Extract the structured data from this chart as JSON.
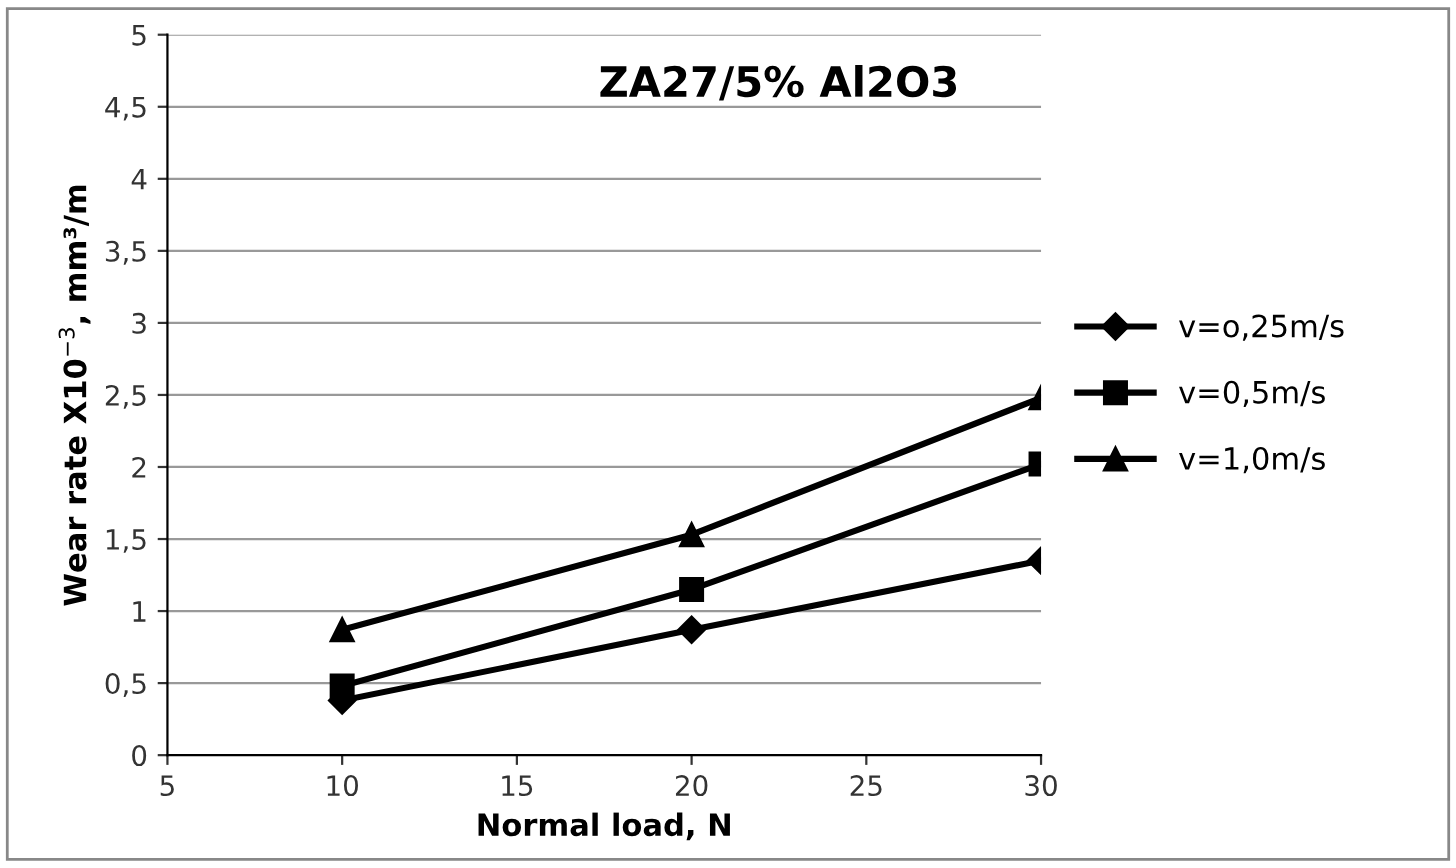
{
  "chart_data": {
    "type": "line",
    "title": "ZA27/5% Al2O3",
    "xlabel": "Normal load, N",
    "ylabel": "Wear rate X10$^{−3}$, mm³/m",
    "x": [
      10,
      20,
      30
    ],
    "series": [
      {
        "name": "v=o,25m/s",
        "color": "#000000",
        "values": [
          0.38,
          0.87,
          1.35
        ],
        "marker": "diamond"
      },
      {
        "name": "v=0,5m/s",
        "color": "#000000",
        "values": [
          0.48,
          1.15,
          2.02
        ],
        "marker": "square"
      },
      {
        "name": "v=1,0m/s",
        "color": "#000000",
        "values": [
          0.87,
          1.53,
          2.48
        ],
        "marker": "triangle"
      }
    ],
    "xlim": [
      5,
      30
    ],
    "xticks": [
      5,
      10,
      15,
      20,
      25,
      30
    ],
    "ylim": [
      0,
      5
    ],
    "yticks": [
      0,
      {
        "value": 0.5,
        "label": "0,5"
      },
      1,
      {
        "value": 1.5,
        "label": "1,5"
      },
      2,
      {
        "value": 2.5,
        "label": "2,5"
      },
      3,
      {
        "value": 3.5,
        "label": "3,5"
      },
      4,
      {
        "value": 4.5,
        "label": "4,5"
      },
      5
    ],
    "grid": "y",
    "legend": "right",
    "line_style": "solid"
  }
}
